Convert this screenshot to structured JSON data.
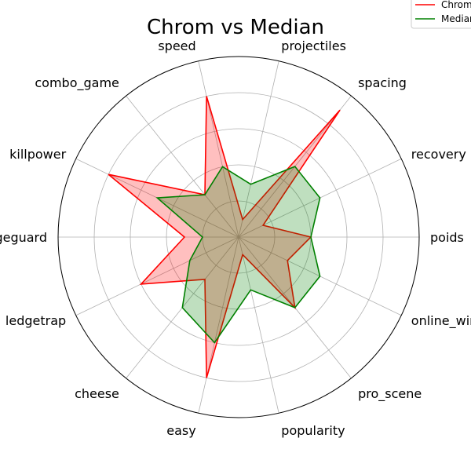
{
  "chart_data": {
    "type": "radar",
    "title": "Chrom vs Median",
    "axes": [
      "poids",
      "recovery",
      "spacing",
      "projectiles",
      "speed",
      "combo_game",
      "killpower",
      "edgeguard",
      "ledgetrap",
      "cheese",
      "easy",
      "popularity",
      "pro_scene",
      "online_winrate"
    ],
    "rlim": [
      0,
      10
    ],
    "grid": true,
    "legend_position": "top-right",
    "series": [
      {
        "name": "Chrom",
        "color": "#ff0000",
        "fill": "#ff0000",
        "values": [
          4,
          1.5,
          9,
          1,
          8,
          3,
          8,
          3,
          6,
          3,
          8,
          1,
          5,
          3
        ]
      },
      {
        "name": "Median",
        "color": "#008000",
        "fill": "#008000",
        "values": [
          4,
          5,
          5,
          3,
          4,
          3,
          5,
          2,
          3,
          5,
          6,
          3,
          5,
          5
        ]
      }
    ]
  }
}
